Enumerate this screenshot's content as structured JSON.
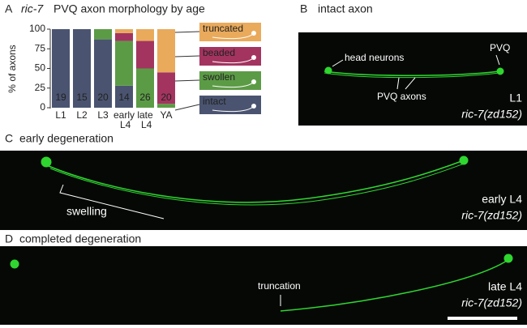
{
  "chart_data": {
    "type": "bar",
    "stacked": true,
    "panel_label": "A",
    "title_italic": "ric-7",
    "title": "PVQ axon morphology by age",
    "ylabel": "% of axons",
    "categories": [
      "L1",
      "L2",
      "L3",
      "early L4",
      "late L4",
      "YA"
    ],
    "sample_sizes": [
      "19",
      "15",
      "20",
      "14",
      "26",
      "20"
    ],
    "series": [
      {
        "name": "intact",
        "color": "#4a5470",
        "values": [
          100,
          100,
          87,
          28,
          0,
          0
        ]
      },
      {
        "name": "swollen",
        "color": "#5c9b46",
        "values": [
          0,
          0,
          13,
          57,
          50,
          5
        ]
      },
      {
        "name": "beaded",
        "color": "#a3345f",
        "values": [
          0,
          0,
          0,
          10,
          35,
          40
        ]
      },
      {
        "name": "truncated",
        "color": "#e9aa5c",
        "values": [
          0,
          0,
          0,
          5,
          15,
          55
        ]
      }
    ],
    "ylim": [
      0,
      100
    ],
    "yticks": [
      0,
      25,
      50,
      75,
      100
    ]
  },
  "panels": [
    {
      "label": "B",
      "title": "intact axon",
      "annotations": [
        "head neurons",
        "PVQ",
        "PVQ axons"
      ],
      "stage": "L1",
      "genotype": "ric-7(zd152)"
    },
    {
      "label": "C",
      "title": "early degeneration",
      "annotations": [
        "swelling"
      ],
      "stage": "early L4",
      "genotype": "ric-7(zd152)"
    },
    {
      "label": "D",
      "title": "completed degeneration",
      "annotations": [
        "truncation"
      ],
      "stage": "late L4",
      "genotype": "ric-7(zd152)"
    }
  ]
}
